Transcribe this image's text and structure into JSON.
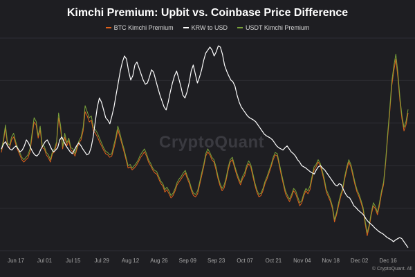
{
  "chart_data": {
    "type": "line",
    "title": "Kimchi Premium: Upbit vs. Coinbase Price Difference",
    "watermark": "CryptoQuant",
    "copyright": "© CryptoQuant. All",
    "x_ticks": [
      "Jun 17",
      "Jul 01",
      "Jul 15",
      "Jul 29",
      "Aug 12",
      "Aug 26",
      "Sep 09",
      "Sep 23",
      "Oct 07",
      "Oct 21",
      "Nov 04",
      "Nov 18",
      "Dec 02",
      "Dec 16"
    ],
    "grid": true,
    "legend_position": "top-center",
    "series": [
      {
        "name": "BTC Kimchi Premium",
        "color": "#e0611b",
        "values": [
          0.34,
          0.52,
          0.75,
          0.45,
          0.42,
          0.55,
          0.6,
          0.48,
          0.38,
          0.3,
          0.22,
          0.18,
          0.22,
          0.25,
          0.35,
          0.6,
          0.85,
          0.8,
          0.58,
          0.72,
          0.42,
          0.4,
          0.3,
          0.25,
          0.18,
          0.32,
          0.35,
          0.48,
          0.92,
          0.72,
          0.4,
          0.6,
          0.45,
          0.54,
          0.38,
          0.35,
          0.28,
          0.4,
          0.5,
          0.55,
          0.7,
          1.02,
          0.95,
          0.85,
          0.88,
          0.7,
          0.66,
          0.6,
          0.52,
          0.45,
          0.38,
          0.32,
          0.3,
          0.26,
          0.28,
          0.4,
          0.55,
          0.72,
          0.6,
          0.48,
          0.35,
          0.22,
          0.08,
          0.1,
          0.05,
          0.08,
          0.12,
          0.18,
          0.25,
          0.3,
          0.35,
          0.28,
          0.18,
          0.12,
          0.05,
          0.0,
          -0.02,
          -0.1,
          -0.18,
          -0.22,
          -0.32,
          -0.28,
          -0.35,
          -0.42,
          -0.38,
          -0.3,
          -0.2,
          -0.15,
          -0.1,
          -0.05,
          0.0,
          -0.1,
          -0.18,
          -0.3,
          -0.38,
          -0.4,
          -0.35,
          -0.2,
          -0.05,
          0.1,
          0.28,
          0.35,
          0.3,
          0.22,
          0.18,
          0.05,
          -0.1,
          -0.22,
          -0.3,
          -0.25,
          -0.12,
          0.05,
          0.18,
          0.22,
          0.1,
          -0.02,
          -0.12,
          -0.2,
          -0.1,
          -0.05,
          0.08,
          0.15,
          0.1,
          -0.05,
          -0.2,
          -0.32,
          -0.4,
          -0.38,
          -0.3,
          -0.18,
          -0.1,
          0.0,
          0.1,
          0.22,
          0.3,
          0.28,
          0.12,
          -0.05,
          -0.2,
          -0.35,
          -0.42,
          -0.48,
          -0.4,
          -0.3,
          -0.35,
          -0.45,
          -0.55,
          -0.5,
          -0.38,
          -0.3,
          -0.35,
          -0.28,
          -0.1,
          0.05,
          0.1,
          0.18,
          0.12,
          0.0,
          -0.15,
          -0.32,
          -0.4,
          -0.48,
          -0.6,
          -0.82,
          -0.7,
          -0.55,
          -0.4,
          -0.3,
          -0.1,
          0.05,
          0.18,
          0.1,
          -0.05,
          -0.2,
          -0.32,
          -0.4,
          -0.5,
          -0.62,
          -0.85,
          -1.05,
          -0.9,
          -0.7,
          -0.55,
          -0.6,
          -0.7,
          -0.55,
          -0.35,
          -0.2,
          0.15,
          0.6,
          1.0,
          1.45,
          1.7,
          1.9,
          1.6,
          1.2,
          0.9,
          0.7,
          0.8,
          1.0
        ]
      },
      {
        "name": "KRW to USD",
        "color": "#ffffff",
        "values": [
          0.4,
          0.48,
          0.52,
          0.45,
          0.4,
          0.38,
          0.42,
          0.45,
          0.4,
          0.35,
          0.38,
          0.45,
          0.55,
          0.5,
          0.42,
          0.35,
          0.3,
          0.28,
          0.32,
          0.4,
          0.46,
          0.52,
          0.55,
          0.48,
          0.4,
          0.35,
          0.38,
          0.42,
          0.55,
          0.6,
          0.52,
          0.45,
          0.4,
          0.35,
          0.32,
          0.38,
          0.45,
          0.5,
          0.46,
          0.4,
          0.35,
          0.3,
          0.32,
          0.42,
          0.6,
          0.85,
          1.1,
          1.25,
          1.18,
          1.05,
          0.92,
          0.88,
          0.82,
          0.95,
          1.1,
          1.3,
          1.5,
          1.7,
          1.85,
          1.95,
          1.9,
          1.7,
          1.55,
          1.62,
          1.8,
          1.85,
          1.75,
          1.65,
          1.55,
          1.48,
          1.5,
          1.6,
          1.72,
          1.68,
          1.55,
          1.42,
          1.3,
          1.2,
          1.1,
          1.05,
          1.18,
          1.35,
          1.5,
          1.62,
          1.7,
          1.58,
          1.45,
          1.3,
          1.25,
          1.35,
          1.5,
          1.7,
          1.8,
          1.65,
          1.5,
          1.6,
          1.72,
          1.88,
          2.0,
          2.05,
          2.1,
          2.05,
          1.95,
          2.02,
          2.12,
          2.1,
          1.98,
          1.8,
          1.7,
          1.62,
          1.55,
          1.52,
          1.45,
          1.3,
          1.18,
          1.1,
          1.05,
          1.0,
          0.95,
          0.92,
          0.9,
          0.88,
          0.85,
          0.8,
          0.75,
          0.7,
          0.65,
          0.62,
          0.6,
          0.58,
          0.55,
          0.5,
          0.45,
          0.42,
          0.4,
          0.38,
          0.42,
          0.45,
          0.4,
          0.35,
          0.32,
          0.28,
          0.22,
          0.18,
          0.12,
          0.1,
          0.08,
          0.05,
          0.02,
          0.0,
          -0.02,
          0.05,
          0.1,
          0.12,
          0.08,
          0.05,
          0.0,
          -0.05,
          -0.1,
          -0.15,
          -0.2,
          -0.22,
          -0.18,
          -0.2,
          -0.28,
          -0.35,
          -0.4,
          -0.42,
          -0.48,
          -0.55,
          -0.58,
          -0.62,
          -0.65,
          -0.68,
          -0.72,
          -0.78,
          -0.82,
          -0.85,
          -0.88,
          -0.92,
          -0.95,
          -0.98,
          -1.0,
          -1.02,
          -1.05,
          -1.08,
          -1.1,
          -1.12,
          -1.15,
          -1.12,
          -1.1,
          -1.08,
          -1.1,
          -1.15,
          -1.2,
          -1.25
        ]
      },
      {
        "name": "USDT Kimchi Premium",
        "color": "#7aa33a",
        "values": [
          0.38,
          0.56,
          0.8,
          0.5,
          0.46,
          0.6,
          0.66,
          0.52,
          0.42,
          0.34,
          0.26,
          0.22,
          0.26,
          0.3,
          0.4,
          0.66,
          0.92,
          0.86,
          0.62,
          0.78,
          0.46,
          0.44,
          0.34,
          0.3,
          0.22,
          0.36,
          0.4,
          0.52,
          1.0,
          0.78,
          0.44,
          0.66,
          0.5,
          0.58,
          0.42,
          0.4,
          0.32,
          0.44,
          0.54,
          0.6,
          0.76,
          1.12,
          1.02,
          0.92,
          0.95,
          0.76,
          0.72,
          0.66,
          0.58,
          0.5,
          0.42,
          0.36,
          0.34,
          0.3,
          0.32,
          0.46,
          0.6,
          0.78,
          0.66,
          0.52,
          0.4,
          0.26,
          0.12,
          0.14,
          0.08,
          0.12,
          0.16,
          0.22,
          0.3,
          0.35,
          0.4,
          0.32,
          0.22,
          0.16,
          0.08,
          0.04,
          0.02,
          -0.06,
          -0.14,
          -0.18,
          -0.28,
          -0.24,
          -0.3,
          -0.38,
          -0.34,
          -0.26,
          -0.16,
          -0.1,
          -0.06,
          0.0,
          0.04,
          -0.06,
          -0.14,
          -0.26,
          -0.34,
          -0.36,
          -0.3,
          -0.16,
          0.0,
          0.14,
          0.32,
          0.4,
          0.34,
          0.26,
          0.22,
          0.1,
          -0.06,
          -0.18,
          -0.26,
          -0.2,
          -0.08,
          0.1,
          0.22,
          0.26,
          0.14,
          0.02,
          -0.08,
          -0.16,
          -0.06,
          0.0,
          0.12,
          0.2,
          0.14,
          0.0,
          -0.16,
          -0.28,
          -0.36,
          -0.34,
          -0.26,
          -0.14,
          -0.06,
          0.04,
          0.14,
          0.26,
          0.34,
          0.32,
          0.16,
          0.0,
          -0.16,
          -0.3,
          -0.38,
          -0.44,
          -0.36,
          -0.26,
          -0.3,
          -0.4,
          -0.5,
          -0.46,
          -0.34,
          -0.26,
          -0.3,
          -0.22,
          -0.06,
          0.1,
          0.14,
          0.22,
          0.16,
          0.04,
          -0.1,
          -0.28,
          -0.36,
          -0.44,
          -0.56,
          -0.78,
          -0.66,
          -0.5,
          -0.36,
          -0.26,
          -0.06,
          0.1,
          0.22,
          0.14,
          0.0,
          -0.16,
          -0.28,
          -0.36,
          -0.46,
          -0.58,
          -0.8,
          -1.0,
          -0.86,
          -0.66,
          -0.5,
          -0.56,
          -0.66,
          -0.5,
          -0.3,
          -0.16,
          0.2,
          0.66,
          1.06,
          1.52,
          1.78,
          1.98,
          1.68,
          1.26,
          0.96,
          0.76,
          0.86,
          1.06
        ]
      }
    ],
    "ylim": [
      -1.3,
      2.25
    ]
  }
}
